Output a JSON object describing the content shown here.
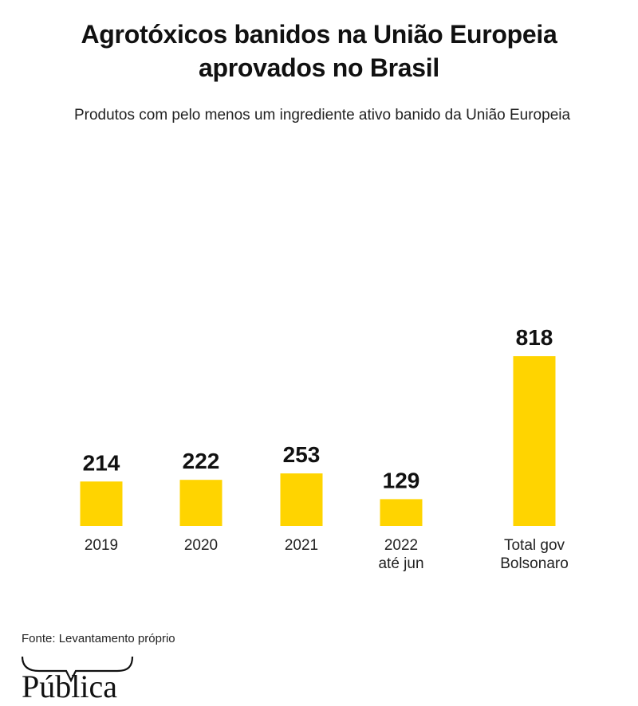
{
  "header": {
    "title_line1": "Agrotóxicos banidos na União Europeia",
    "title_line2": "aprovados no Brasil",
    "subtitle": "Produtos com pelo menos um ingrediente ativo banido da União Europeia"
  },
  "footer": {
    "source": "Fonte: Levantamento próprio",
    "logo_text": "Pública",
    "logo_icon": "speech-brace-icon"
  },
  "colors": {
    "bar": "#FFD400",
    "text": "#111111"
  },
  "chart_data": {
    "type": "bar",
    "title": "Agrotóxicos banidos na União Europeia aprovados no Brasil",
    "subtitle": "Produtos com pelo menos um ingrediente ativo banido da União Europeia",
    "categories": [
      [
        "2019"
      ],
      [
        "2020"
      ],
      [
        "2021"
      ],
      [
        "2022",
        "até jun"
      ],
      [
        "Total gov",
        "Bolsonaro"
      ]
    ],
    "values": [
      214,
      222,
      253,
      129,
      818
    ],
    "data_labels": [
      "214",
      "222",
      "253",
      "129",
      "818"
    ],
    "xlabel": "",
    "ylabel": "",
    "ylim": [
      0,
      818
    ],
    "grid": false,
    "legend": "none"
  }
}
